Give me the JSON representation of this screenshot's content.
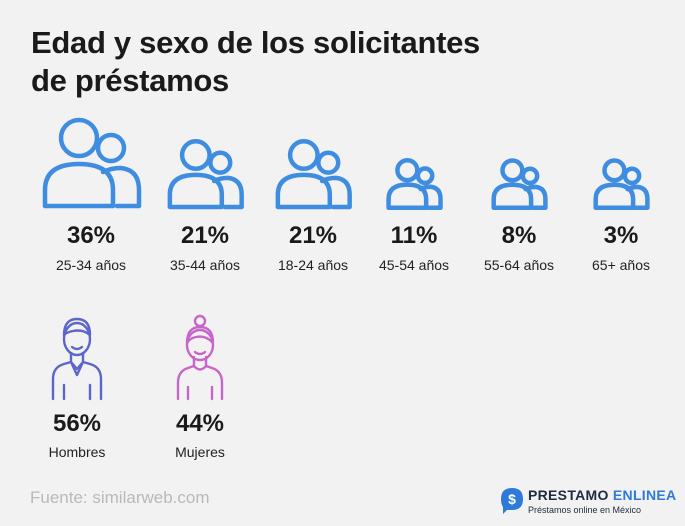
{
  "title_line1": "Edad y sexo de los solicitantes",
  "title_line2": "de préstamos",
  "colors": {
    "age_icon": "#3f8de0",
    "male_icon": "#5b66c9",
    "female_icon": "#c765c8",
    "brand_accent": "#2e7ad8"
  },
  "chart_data": {
    "type": "pictogram",
    "groups": [
      {
        "name": "Edad",
        "categories": [
          "25-34 años",
          "35-44 años",
          "18-24 años",
          "45-54 años",
          "55-64 años",
          "65+ años"
        ],
        "values": [
          36,
          21,
          21,
          11,
          8,
          3
        ],
        "labels": [
          "36%",
          "21%",
          "21%",
          "11%",
          "8%",
          "3%"
        ],
        "icon": "people-icon"
      },
      {
        "name": "Sexo",
        "categories": [
          "Hombres",
          "Mujeres"
        ],
        "values": [
          56,
          44
        ],
        "labels": [
          "56%",
          "44%"
        ],
        "icons": [
          "man-icon",
          "woman-icon"
        ]
      }
    ]
  },
  "source": "Fuente: similarweb.com",
  "brand": {
    "name_part1": "PRESTAMO ",
    "name_part2": "ENLINEA",
    "tagline": "Préstamos online en México",
    "logo_icon": "dollar-chat-icon"
  }
}
